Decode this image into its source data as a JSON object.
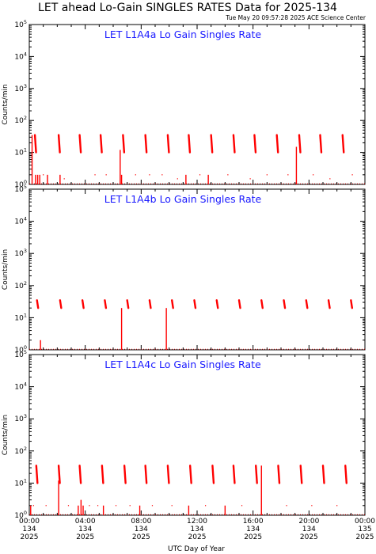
{
  "page_title": "LET ahead Lo-Gain SINGLES RATES Data for 2025-134",
  "timestamp": "Tue May 20 09:57:28 2025 ACE Science Center",
  "xlabel": "UTC Day of Year",
  "ylabel": "Counts/min",
  "x_ticks": [
    {
      "time": "00:00",
      "doy": "134",
      "year": "2025"
    },
    {
      "time": "04:00",
      "doy": "134",
      "year": "2025"
    },
    {
      "time": "08:00",
      "doy": "134",
      "year": "2025"
    },
    {
      "time": "12:00",
      "doy": "134",
      "year": "2025"
    },
    {
      "time": "16:00",
      "doy": "134",
      "year": "2025"
    },
    {
      "time": "20:00",
      "doy": "134",
      "year": "2025"
    },
    {
      "time": "00:00",
      "doy": "135",
      "year": "2025"
    }
  ],
  "colors": {
    "data": "#ff0000",
    "panel_title": "#1a1aff",
    "axis": "#000000"
  },
  "chart_data": [
    {
      "type": "scatter",
      "title": "LET L1A4a Lo Gain Singles Rate",
      "xlim_hours": [
        0,
        24
      ],
      "ylim": [
        1,
        100000
      ],
      "yscale": "log",
      "y_ticks": [
        "10^0",
        "10^1",
        "10^2",
        "10^3",
        "10^4",
        "10^5"
      ],
      "bursts": [
        {
          "t": 0.4,
          "low": 10,
          "high": 35
        },
        {
          "t": 2.1,
          "low": 10,
          "high": 35
        },
        {
          "t": 3.6,
          "low": 10,
          "high": 35
        },
        {
          "t": 5.1,
          "low": 10,
          "high": 35
        },
        {
          "t": 6.7,
          "low": 10,
          "high": 35
        },
        {
          "t": 8.3,
          "low": 10,
          "high": 35
        },
        {
          "t": 9.9,
          "low": 10,
          "high": 35
        },
        {
          "t": 11.4,
          "low": 10,
          "high": 35
        },
        {
          "t": 13.0,
          "low": 10,
          "high": 35
        },
        {
          "t": 14.6,
          "low": 10,
          "high": 35
        },
        {
          "t": 16.1,
          "low": 10,
          "high": 35
        },
        {
          "t": 17.7,
          "low": 10,
          "high": 35
        },
        {
          "t": 19.3,
          "low": 10,
          "high": 35
        },
        {
          "t": 20.8,
          "low": 10,
          "high": 35
        },
        {
          "t": 22.4,
          "low": 10,
          "high": 35
        }
      ],
      "spikes": [
        {
          "t": 0.2,
          "value": 35
        },
        {
          "t": 0.45,
          "value": 2
        },
        {
          "t": 0.6,
          "value": 2
        },
        {
          "t": 0.75,
          "value": 2
        },
        {
          "t": 1.3,
          "value": 2
        },
        {
          "t": 2.2,
          "value": 2
        },
        {
          "t": 6.5,
          "value": 12
        },
        {
          "t": 6.6,
          "value": 2
        },
        {
          "t": 11.2,
          "value": 2
        },
        {
          "t": 12.8,
          "value": 2
        },
        {
          "t": 19.1,
          "value": 15
        }
      ],
      "baseline_dots": [
        {
          "t": 1.0,
          "value": 2
        },
        {
          "t": 2.5,
          "value": 1.5
        },
        {
          "t": 4.7,
          "value": 2
        },
        {
          "t": 5.5,
          "value": 2
        },
        {
          "t": 7.6,
          "value": 2
        },
        {
          "t": 8.6,
          "value": 2
        },
        {
          "t": 9.5,
          "value": 2
        },
        {
          "t": 10.6,
          "value": 1.5
        },
        {
          "t": 12.2,
          "value": 2
        },
        {
          "t": 14.2,
          "value": 2
        },
        {
          "t": 15.8,
          "value": 1.5
        },
        {
          "t": 17.0,
          "value": 2
        },
        {
          "t": 18.5,
          "value": 2
        },
        {
          "t": 20.3,
          "value": 2
        },
        {
          "t": 21.5,
          "value": 1.5
        },
        {
          "t": 23.1,
          "value": 2
        }
      ]
    },
    {
      "type": "scatter",
      "title": "LET L1A4b Lo Gain Singles Rate",
      "xlim_hours": [
        0,
        24
      ],
      "ylim": [
        1,
        100000
      ],
      "yscale": "log",
      "y_ticks": [
        "10^0",
        "10^1",
        "10^2",
        "10^3",
        "10^4",
        "10^5"
      ],
      "bursts": [
        {
          "t": 0.55,
          "low": 20,
          "high": 35
        },
        {
          "t": 2.2,
          "low": 20,
          "high": 35
        },
        {
          "t": 3.8,
          "low": 20,
          "high": 35
        },
        {
          "t": 5.4,
          "low": 20,
          "high": 35
        },
        {
          "t": 7.0,
          "low": 20,
          "high": 35
        },
        {
          "t": 8.6,
          "low": 20,
          "high": 35
        },
        {
          "t": 10.2,
          "low": 20,
          "high": 35
        },
        {
          "t": 11.8,
          "low": 20,
          "high": 35
        },
        {
          "t": 13.4,
          "low": 20,
          "high": 35
        },
        {
          "t": 15.0,
          "low": 20,
          "high": 35
        },
        {
          "t": 16.6,
          "low": 20,
          "high": 35
        },
        {
          "t": 18.2,
          "low": 20,
          "high": 35
        },
        {
          "t": 19.8,
          "low": 20,
          "high": 35
        },
        {
          "t": 21.4,
          "low": 20,
          "high": 35
        },
        {
          "t": 23.0,
          "low": 20,
          "high": 35
        }
      ],
      "spikes": [
        {
          "t": 0.8,
          "value": 2
        },
        {
          "t": 6.6,
          "value": 20
        },
        {
          "t": 9.8,
          "value": 20
        }
      ],
      "baseline_dots": []
    },
    {
      "type": "scatter",
      "title": "LET L1A4c Lo Gain Singles Rate",
      "xlim_hours": [
        0,
        24
      ],
      "ylim": [
        1,
        100000
      ],
      "yscale": "log",
      "y_ticks": [
        "10^0",
        "10^1",
        "10^2",
        "10^3",
        "10^4",
        "10^5"
      ],
      "bursts": [
        {
          "t": 0.5,
          "low": 10,
          "high": 35
        },
        {
          "t": 2.1,
          "low": 10,
          "high": 35
        },
        {
          "t": 3.6,
          "low": 10,
          "high": 35
        },
        {
          "t": 5.2,
          "low": 10,
          "high": 35
        },
        {
          "t": 6.8,
          "low": 10,
          "high": 35
        },
        {
          "t": 8.3,
          "low": 10,
          "high": 35
        },
        {
          "t": 9.9,
          "low": 10,
          "high": 35
        },
        {
          "t": 11.5,
          "low": 10,
          "high": 35
        },
        {
          "t": 13.1,
          "low": 10,
          "high": 35
        },
        {
          "t": 14.6,
          "low": 10,
          "high": 35
        },
        {
          "t": 16.2,
          "low": 10,
          "high": 35
        },
        {
          "t": 17.8,
          "low": 10,
          "high": 35
        },
        {
          "t": 19.4,
          "low": 10,
          "high": 35
        },
        {
          "t": 21.0,
          "low": 10,
          "high": 35
        },
        {
          "t": 22.6,
          "low": 10,
          "high": 35
        }
      ],
      "spikes": [
        {
          "t": 0.1,
          "value": 2
        },
        {
          "t": 2.1,
          "value": 12
        },
        {
          "t": 3.5,
          "value": 2
        },
        {
          "t": 3.7,
          "value": 3
        },
        {
          "t": 3.85,
          "value": 2
        },
        {
          "t": 5.3,
          "value": 2
        },
        {
          "t": 7.9,
          "value": 2
        },
        {
          "t": 11.4,
          "value": 2
        },
        {
          "t": 14.0,
          "value": 2
        },
        {
          "t": 16.6,
          "value": 35
        }
      ],
      "baseline_dots": [
        {
          "t": 0.3,
          "value": 2
        },
        {
          "t": 1.2,
          "value": 2
        },
        {
          "t": 2.8,
          "value": 2
        },
        {
          "t": 4.3,
          "value": 2
        },
        {
          "t": 4.9,
          "value": 2
        },
        {
          "t": 6.2,
          "value": 2
        },
        {
          "t": 7.2,
          "value": 2
        },
        {
          "t": 8.8,
          "value": 2
        },
        {
          "t": 10.2,
          "value": 2
        },
        {
          "t": 12.6,
          "value": 2
        },
        {
          "t": 15.2,
          "value": 2
        },
        {
          "t": 18.4,
          "value": 2
        },
        {
          "t": 20.2,
          "value": 2
        },
        {
          "t": 22.0,
          "value": 2
        }
      ]
    }
  ]
}
